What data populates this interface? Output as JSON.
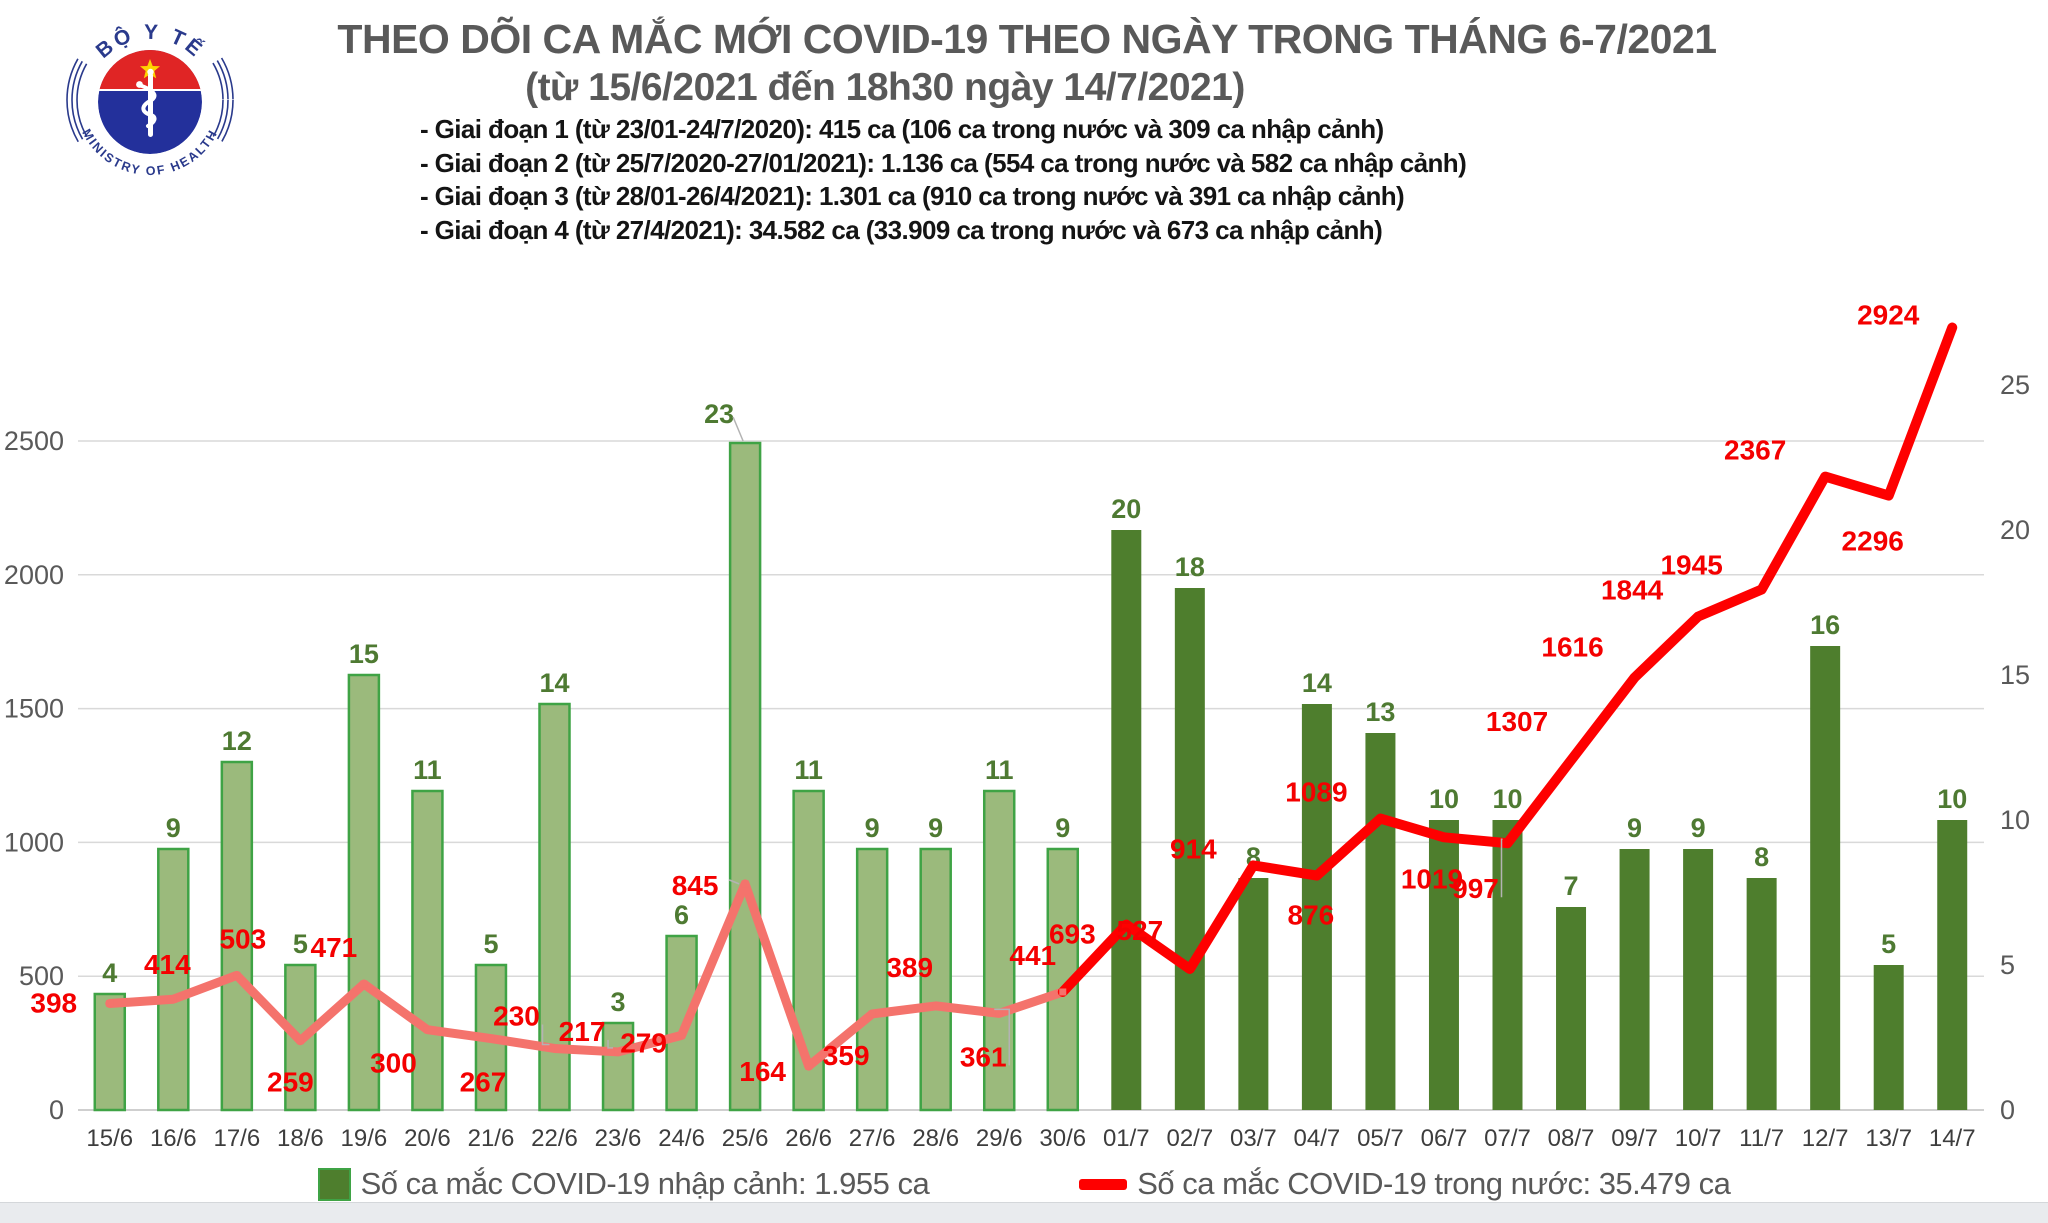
{
  "header": {
    "title_line1": "THEO DÕI CA MẮC MỚI COVID-19 THEO NGÀY TRONG THÁNG 6-7/2021",
    "title_line2": "(từ 15/6/2021 đến 18h30 ngày 14/7/2021)",
    "bullets": [
      "- Giai đoạn 1 (từ 23/01-24/7/2020): 415 ca (106 ca trong nước và 309 ca nhập cảnh)",
      "- Giai đoạn 2 (từ 25/7/2020-27/01/2021): 1.136 ca (554 ca trong nước và 582 ca nhập cảnh)",
      "- Giai đoạn 3 (từ 28/01-26/4/2021): 1.301 ca (910 ca trong nước và 391 ca nhập cảnh)",
      "- Giai đoạn 4 (từ 27/4/2021): 34.582 ca (33.909 ca trong nước và 673 ca nhập cảnh)"
    ]
  },
  "logo": {
    "top_text": "BỘ Y TẾ",
    "bottom_text": "MINISTRY OF HEALTH"
  },
  "chart_data": {
    "type": "combo",
    "title": "THEO DÕI CA MẮC MỚI COVID-19 THEO NGÀY TRONG THÁNG 6-7/2021",
    "categories": [
      "15/6",
      "16/6",
      "17/6",
      "18/6",
      "19/6",
      "20/6",
      "21/6",
      "22/6",
      "23/6",
      "24/6",
      "25/6",
      "26/6",
      "27/6",
      "28/6",
      "29/6",
      "30/6",
      "01/7",
      "02/7",
      "03/7",
      "04/7",
      "05/7",
      "06/7",
      "07/7",
      "08/7",
      "09/7",
      "10/7",
      "11/7",
      "12/7",
      "13/7",
      "14/7"
    ],
    "series": [
      {
        "name": "Số ca mắc COVID-19 nhập cảnh",
        "type": "bar",
        "yaxis": "right",
        "values": [
          4,
          9,
          12,
          5,
          15,
          11,
          5,
          14,
          3,
          6,
          23,
          11,
          9,
          9,
          11,
          9,
          20,
          18,
          8,
          14,
          13,
          10,
          10,
          7,
          9,
          9,
          8,
          16,
          5,
          10
        ]
      },
      {
        "name": "Số ca mắc COVID-19 trong nước",
        "type": "line",
        "yaxis": "left",
        "values": [
          398,
          414,
          503,
          259,
          471,
          300,
          267,
          230,
          217,
          279,
          845,
          164,
          359,
          389,
          361,
          441,
          693,
          527,
          914,
          876,
          1089,
          1019,
          997,
          1307,
          1616,
          1844,
          1945,
          2367,
          2296,
          2924
        ]
      }
    ],
    "left_axis": {
      "min": 0,
      "max": 2500,
      "step": 500,
      "ticks": [
        0,
        500,
        1000,
        1500,
        2000,
        2500
      ]
    },
    "right_axis": {
      "min": 0,
      "max": 25,
      "step": 5,
      "ticks": [
        0,
        5,
        10,
        15,
        20,
        25
      ]
    },
    "grid": true,
    "legend_position": "bottom",
    "line_label_layout": [
      [
        -56,
        0,
        0
      ],
      [
        -6,
        -34,
        0
      ],
      [
        6,
        -36,
        0
      ],
      [
        -10,
        42,
        0
      ],
      [
        -30,
        -36,
        0
      ],
      [
        -34,
        34,
        0
      ],
      [
        -8,
        44,
        0
      ],
      [
        -38,
        -32,
        1
      ],
      [
        -36,
        -20,
        1
      ],
      [
        -38,
        8,
        0
      ],
      [
        -50,
        2,
        2
      ],
      [
        -46,
        6,
        0
      ],
      [
        -26,
        42,
        0
      ],
      [
        -26,
        -38,
        0
      ],
      [
        -16,
        44,
        1
      ],
      [
        -30,
        -36,
        0
      ],
      [
        -54,
        10,
        0
      ],
      [
        -50,
        -38,
        0
      ],
      [
        -60,
        -16,
        0
      ],
      [
        -6,
        40,
        0
      ],
      [
        -64,
        -26,
        0
      ],
      [
        -12,
        42,
        0
      ],
      [
        -32,
        46,
        1
      ],
      [
        -54,
        -38,
        0
      ],
      [
        -62,
        -30,
        0
      ],
      [
        -66,
        -26,
        0
      ],
      [
        -70,
        -24,
        0
      ],
      [
        -70,
        -26,
        0
      ],
      [
        -16,
        46,
        0
      ],
      [
        -64,
        -12,
        0
      ]
    ],
    "bar_label_callout_index": 10
  },
  "legend": [
    {
      "label": "Số ca mắc COVID-19 nhập cảnh: 1.955 ca",
      "marker": "square",
      "color": "#4e7e2d"
    },
    {
      "label": "Số ca mắc COVID-19 trong nước: 35.479 ca",
      "marker": "dash",
      "color": "#fe0000"
    }
  ],
  "colors": {
    "bar_june_fill": "#9bba7c",
    "bar_june_stroke": "#3fa345",
    "bar_july_fill": "#4e7e2d",
    "bar_label": "#4e7a32",
    "line_june": "#f4736c",
    "line_july": "#fe0000",
    "line_label": "#f40000",
    "grid": "#d9d9d9",
    "axis_line": "#bfbfbf",
    "axis_text": "#595959",
    "date_text": "#3d3d3d",
    "title": "#595959",
    "legend_text": "#595959",
    "leader": "#b3b3b3",
    "logo_blue": "#23309b",
    "logo_red": "#e02525",
    "logo_star": "#ffd200"
  }
}
